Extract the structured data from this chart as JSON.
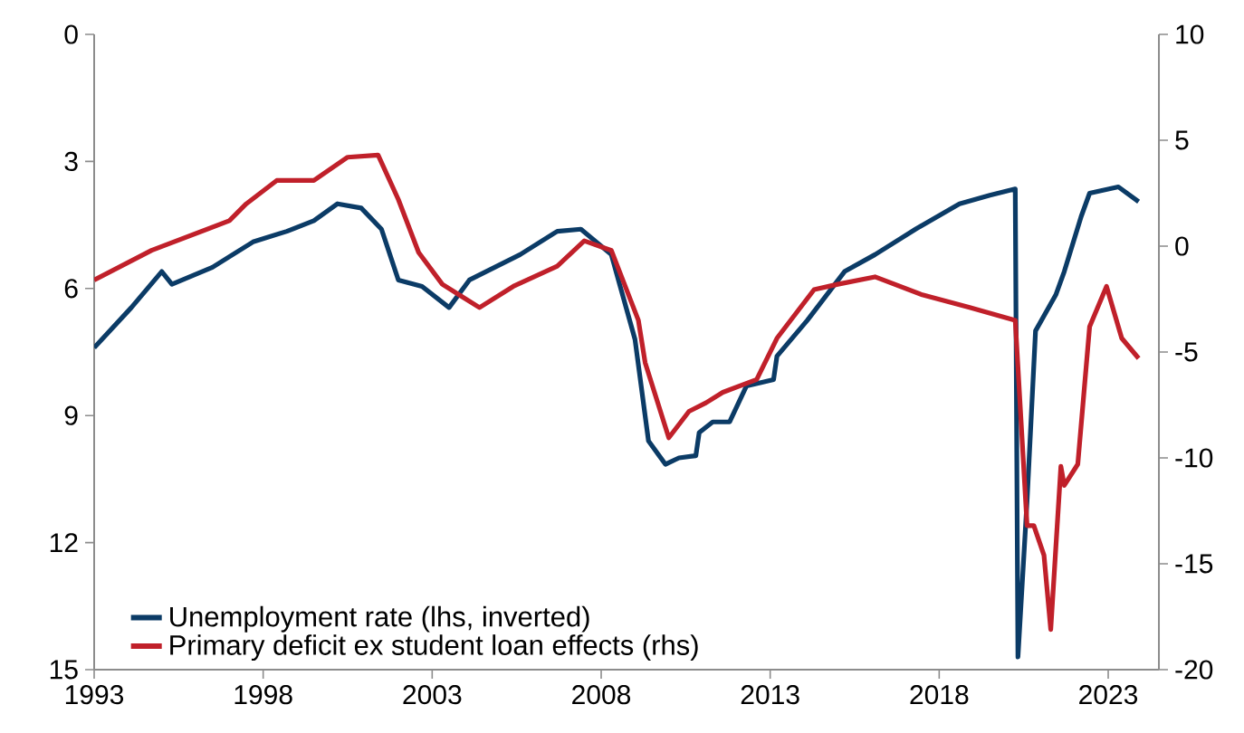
{
  "chart_data": {
    "type": "line",
    "legend": "bottom left",
    "grid": false,
    "line_style": "solid",
    "marker": "none",
    "xlim": [
      1993,
      2024.5
    ],
    "xticks": [
      1993,
      1998,
      2003,
      2008,
      2013,
      2018,
      2023
    ],
    "ylim": [
      15,
      0
    ],
    "yticks": [
      0,
      3,
      6,
      9,
      12,
      15
    ],
    "y2lim": [
      -20,
      10
    ],
    "y2ticks": [
      -20,
      -15,
      -10,
      -5,
      0,
      5,
      10
    ],
    "series": [
      {
        "name": "Unemployment rate (lhs, inverted)",
        "color": "#0b3b66",
        "axis": "y",
        "x": [
          1993,
          1994.1,
          1995.0,
          1995.3,
          1996.5,
          1997.7,
          1998.7,
          1999.5,
          2000.2,
          2000.9,
          2001.5,
          2002.0,
          2002.7,
          2003.5,
          2004.1,
          2005.6,
          2006.7,
          2007.4,
          2008.3,
          2009.0,
          2009.4,
          2009.9,
          2010.3,
          2010.8,
          2010.9,
          2011.3,
          2011.8,
          2012.3,
          2013.1,
          2013.2,
          2014.1,
          2015.2,
          2016.1,
          2017.3,
          2018.6,
          2019.5,
          2020.25,
          2020.33,
          2020.6,
          2020.85,
          2021.45,
          2021.7,
          2022.2,
          2022.45,
          2023.3,
          2023.9
        ],
        "values": [
          7.4,
          6.45,
          5.6,
          5.9,
          5.5,
          4.9,
          4.65,
          4.4,
          4.0,
          4.1,
          4.6,
          5.8,
          5.95,
          6.45,
          5.8,
          5.2,
          4.65,
          4.6,
          5.2,
          7.2,
          9.6,
          10.15,
          10.0,
          9.95,
          9.4,
          9.15,
          9.15,
          8.3,
          8.15,
          7.6,
          6.75,
          5.6,
          5.2,
          4.6,
          4.0,
          3.8,
          3.65,
          14.7,
          11.0,
          7.0,
          6.15,
          5.6,
          4.3,
          3.75,
          3.6,
          3.95
        ]
      },
      {
        "name": "Primary deficit ex student loan effects (rhs)",
        "color": "#c0202a",
        "axis": "y2",
        "x": [
          1993,
          1994.7,
          1997.0,
          1997.5,
          1998.4,
          1999.5,
          2000.5,
          2001.4,
          2002.0,
          2002.6,
          2003.3,
          2004.4,
          2005.4,
          2006.7,
          2007.5,
          2008.3,
          2009.1,
          2009.3,
          2010.0,
          2010.6,
          2011.1,
          2011.6,
          2012.6,
          2013.2,
          2014.3,
          2015.0,
          2016.1,
          2017.5,
          2018.9,
          2020.25,
          2020.6,
          2020.8,
          2021.1,
          2021.3,
          2021.6,
          2021.7,
          2022.1,
          2022.45,
          2022.95,
          2023.4,
          2023.9
        ],
        "values": [
          -1.6,
          -0.2,
          1.2,
          2.0,
          3.1,
          3.1,
          4.2,
          4.3,
          2.2,
          -0.3,
          -1.8,
          -2.9,
          -1.9,
          -0.95,
          0.25,
          -0.2,
          -3.5,
          -5.5,
          -9.05,
          -7.8,
          -7.4,
          -6.9,
          -6.3,
          -4.35,
          -2.05,
          -1.8,
          -1.45,
          -2.3,
          -2.9,
          -3.5,
          -13.2,
          -13.2,
          -14.6,
          -18.1,
          -10.4,
          -11.3,
          -10.3,
          -3.8,
          -1.9,
          -4.35,
          -5.3
        ]
      }
    ]
  }
}
